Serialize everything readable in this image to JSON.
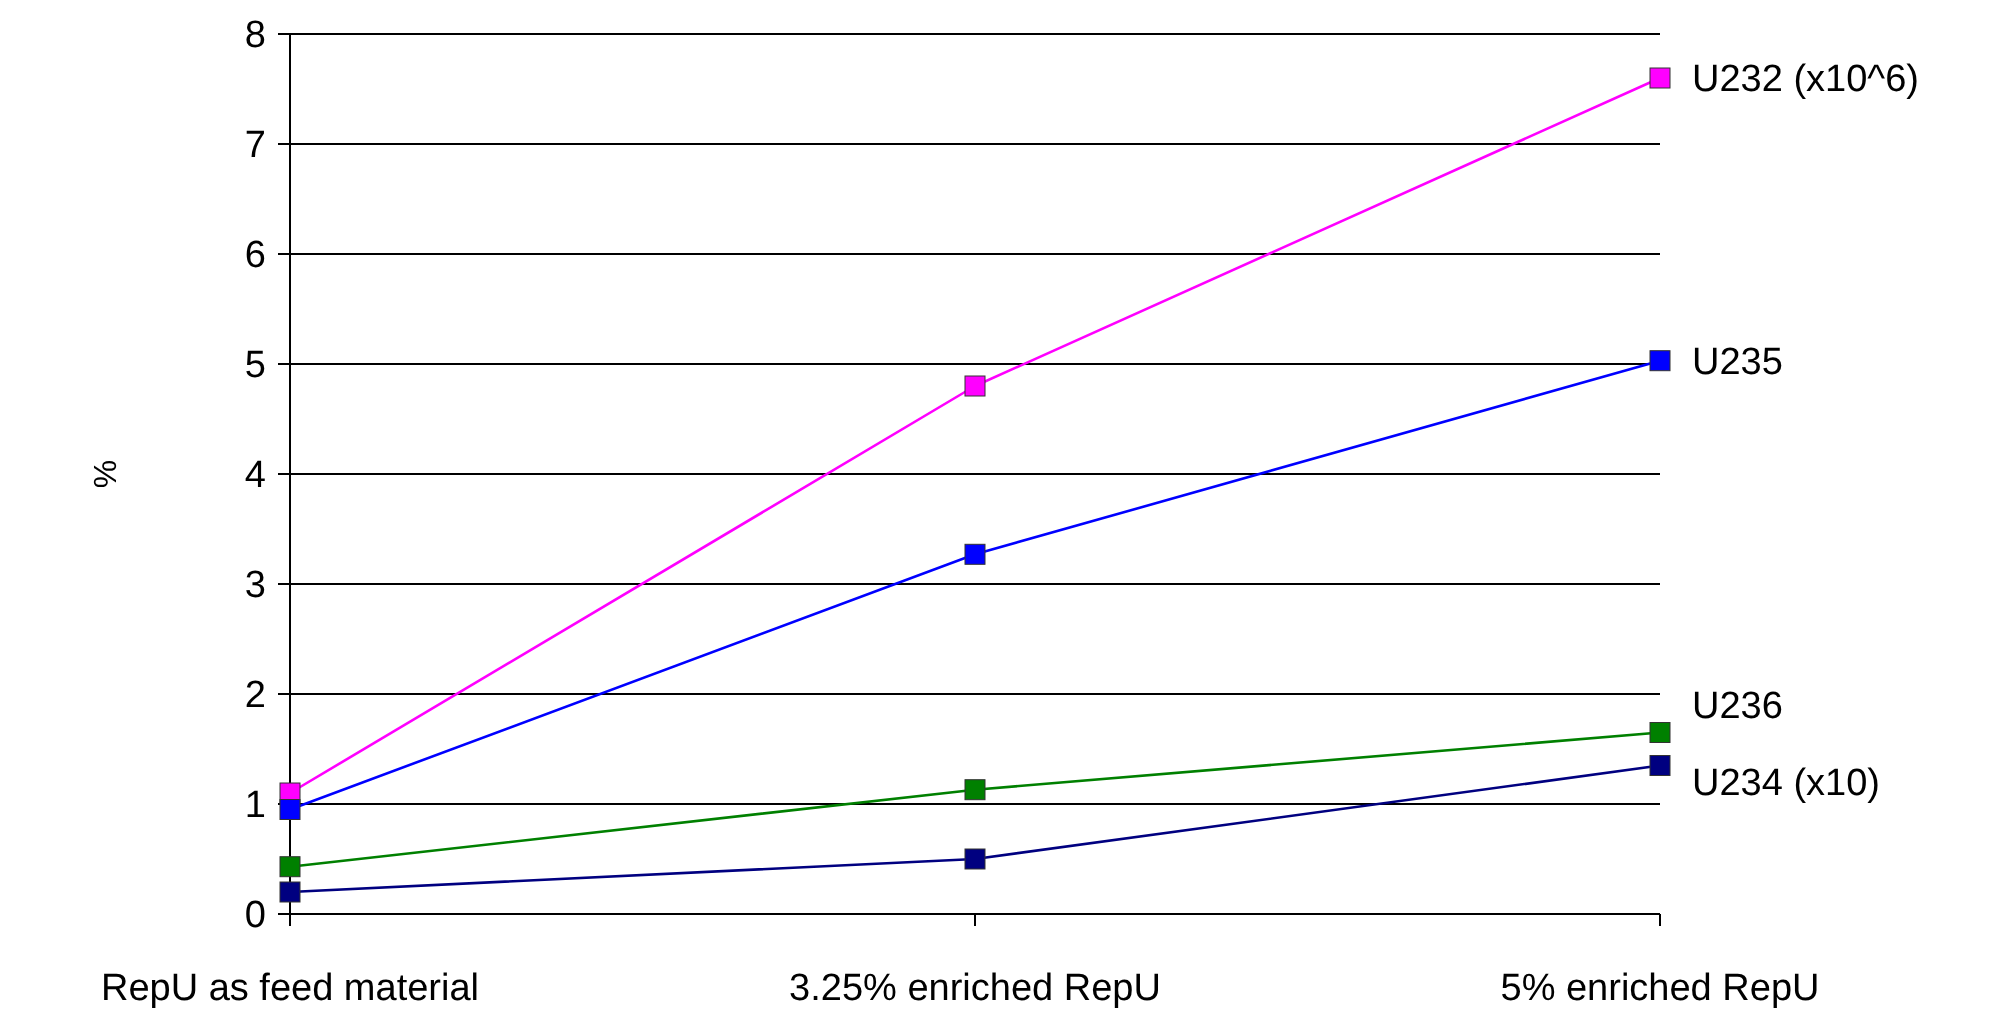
{
  "chart_data": {
    "type": "line",
    "ylabel": "%",
    "categories": [
      "RepU as feed material",
      "3.25% enriched RepU",
      "5% enriched RepU"
    ],
    "series": [
      {
        "name": "U232 (x10^6)",
        "color": "#ff00ff",
        "values": [
          1.1,
          4.8,
          7.6
        ]
      },
      {
        "name": "U235",
        "color": "#0000ff",
        "values": [
          0.95,
          3.27,
          5.03
        ]
      },
      {
        "name": "U236",
        "color": "#008000",
        "values": [
          0.43,
          1.13,
          1.65
        ]
      },
      {
        "name": "U234 (x10)",
        "color": "#000080",
        "values": [
          0.2,
          0.5,
          1.35
        ]
      }
    ],
    "ylim": [
      0,
      8
    ],
    "yticks": [
      0,
      1,
      2,
      3,
      4,
      5,
      6,
      7,
      8
    ],
    "grid": "y",
    "marker": "square",
    "line_style": "solid"
  }
}
